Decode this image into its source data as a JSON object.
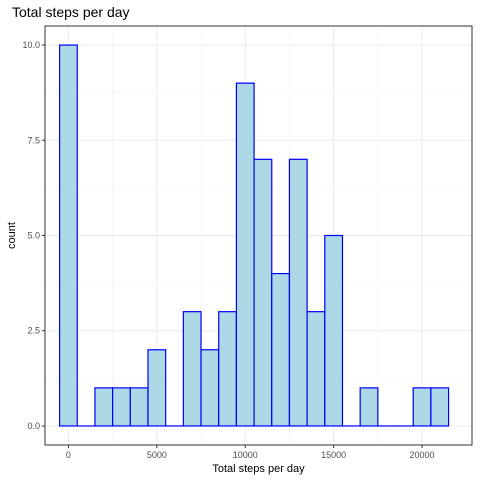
{
  "chart_data": {
    "type": "bar",
    "title": "Total steps per day",
    "xlabel": "Total steps per day",
    "ylabel": "count",
    "binwidth": 1000,
    "bins": [
      {
        "center": 0,
        "count": 10
      },
      {
        "center": 1000,
        "count": 0
      },
      {
        "center": 2000,
        "count": 1
      },
      {
        "center": 3000,
        "count": 1
      },
      {
        "center": 4000,
        "count": 1
      },
      {
        "center": 5000,
        "count": 2
      },
      {
        "center": 6000,
        "count": 0
      },
      {
        "center": 7000,
        "count": 3
      },
      {
        "center": 8000,
        "count": 2
      },
      {
        "center": 9000,
        "count": 3
      },
      {
        "center": 10000,
        "count": 9
      },
      {
        "center": 11000,
        "count": 7
      },
      {
        "center": 12000,
        "count": 4
      },
      {
        "center": 13000,
        "count": 7
      },
      {
        "center": 14000,
        "count": 3
      },
      {
        "center": 15000,
        "count": 5
      },
      {
        "center": 16000,
        "count": 0
      },
      {
        "center": 17000,
        "count": 1
      },
      {
        "center": 18000,
        "count": 0
      },
      {
        "center": 19000,
        "count": 0
      },
      {
        "center": 20000,
        "count": 1
      },
      {
        "center": 21000,
        "count": 1
      }
    ],
    "xlim": [
      -1325,
      22825
    ],
    "ylim": [
      -0.5,
      10.5
    ],
    "x_ticks": [
      0,
      5000,
      10000,
      15000,
      20000
    ],
    "x_tick_labels": [
      "0",
      "5000",
      "10000",
      "15000",
      "20000"
    ],
    "y_ticks": [
      0,
      2.5,
      5,
      7.5,
      10
    ],
    "y_tick_labels": [
      "0.0",
      "2.5",
      "5.0",
      "7.5",
      "10.0"
    ],
    "grid": true,
    "colors": {
      "fill": "#add8e6",
      "outline": "#0000ff"
    }
  }
}
